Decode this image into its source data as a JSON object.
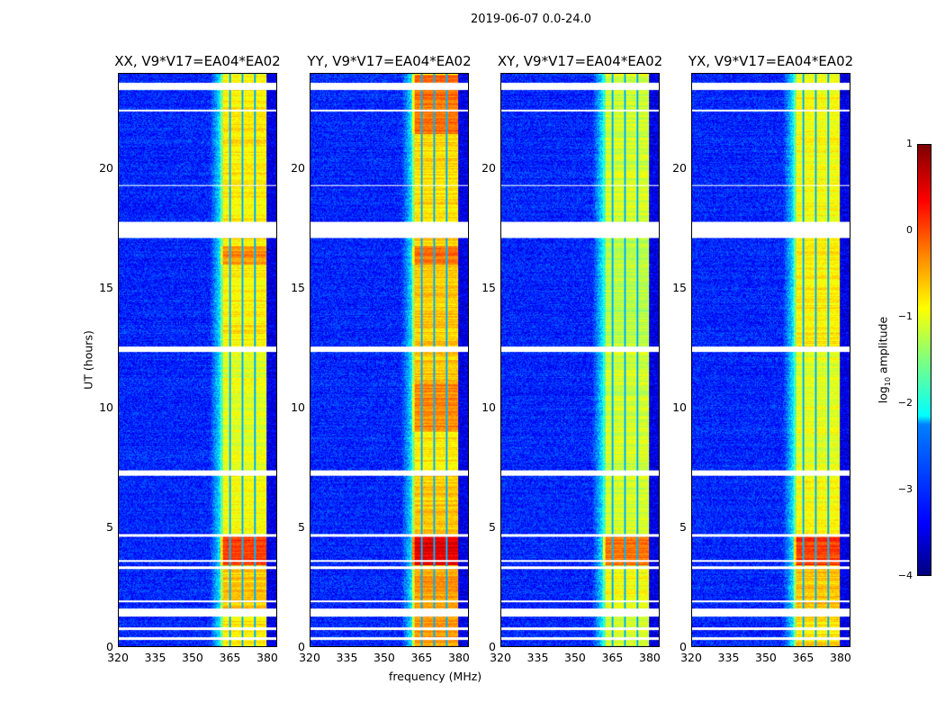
{
  "chart_data": {
    "type": "heatmap",
    "title": "2019-06-07 0.0-24.0",
    "xlabel": "frequency (MHz)",
    "ylabel": "UT (hours)",
    "xlim": [
      320,
      384
    ],
    "ylim": [
      0,
      24
    ],
    "xticks": [
      "320",
      "335",
      "350",
      "365",
      "380"
    ],
    "xtick_values": [
      320,
      335,
      350,
      365,
      380
    ],
    "yticks": [
      "0",
      "5",
      "10",
      "15",
      "20"
    ],
    "ytick_values": [
      0,
      5,
      10,
      15,
      20
    ],
    "colorbar": {
      "label_prefix": "log",
      "label_sub": "10",
      "label_suffix": " amplitude",
      "range": [
        -4,
        1
      ],
      "ticks": [
        "1",
        "0",
        "−1",
        "−2",
        "−3",
        "−4"
      ],
      "tick_values": [
        1,
        0,
        -1,
        -2,
        -3,
        -4
      ],
      "colormap": "jet"
    },
    "band": {
      "freq_range": [
        361,
        380
      ],
      "channel_edges": [
        365,
        370,
        375
      ]
    },
    "background_log_amplitude": -3.2,
    "flagged_hours": [
      [
        0.3,
        0.4
      ],
      [
        0.7,
        0.8
      ],
      [
        1.25,
        1.6
      ],
      [
        1.85,
        1.95
      ],
      [
        3.25,
        3.35
      ],
      [
        3.55,
        3.62
      ],
      [
        4.62,
        4.72
      ],
      [
        7.15,
        7.4
      ],
      [
        12.35,
        12.6
      ],
      [
        17.15,
        17.8
      ],
      [
        19.3,
        19.35
      ],
      [
        22.45,
        22.5
      ],
      [
        23.35,
        23.65
      ]
    ],
    "panels": [
      {
        "title": "XX, V9*V17=EA04*EA02",
        "segments": [
          [
            0,
            1.5,
            -0.8
          ],
          [
            1.6,
            3.3,
            -0.6
          ],
          [
            3.4,
            4.6,
            0.05
          ],
          [
            4.7,
            7.2,
            -0.9
          ],
          [
            7.4,
            12.4,
            -1.0
          ],
          [
            12.6,
            16.0,
            -0.8
          ],
          [
            16.0,
            16.8,
            -0.3
          ],
          [
            16.8,
            17.2,
            -0.8
          ],
          [
            17.8,
            24,
            -0.8
          ]
        ]
      },
      {
        "title": "YY, V9*V17=EA04*EA02",
        "segments": [
          [
            0,
            1.5,
            -0.4
          ],
          [
            1.6,
            3.3,
            -0.4
          ],
          [
            3.4,
            4.6,
            0.5
          ],
          [
            4.7,
            7.2,
            -0.6
          ],
          [
            7.4,
            9,
            -0.8
          ],
          [
            9,
            11,
            -0.3
          ],
          [
            11,
            12.4,
            -0.6
          ],
          [
            12.6,
            16.0,
            -0.6
          ],
          [
            16.0,
            16.8,
            -0.2
          ],
          [
            16.8,
            17.2,
            -0.6
          ],
          [
            17.8,
            21.5,
            -0.7
          ],
          [
            21.5,
            24,
            -0.2
          ]
        ]
      },
      {
        "title": "XY, V9*V17=EA04*EA02",
        "segments": [
          [
            0,
            1.5,
            -1.1
          ],
          [
            1.6,
            3.3,
            -0.9
          ],
          [
            3.4,
            4.6,
            -0.2
          ],
          [
            4.7,
            7.2,
            -1.1
          ],
          [
            7.4,
            12.4,
            -1.1
          ],
          [
            12.6,
            17.2,
            -1.2
          ],
          [
            17.8,
            24,
            -1.1
          ]
        ]
      },
      {
        "title": "YX, V9*V17=EA04*EA02",
        "segments": [
          [
            0,
            1.5,
            -0.7
          ],
          [
            1.6,
            3.3,
            -0.6
          ],
          [
            3.4,
            4.6,
            0.1
          ],
          [
            4.7,
            7.2,
            -0.9
          ],
          [
            7.4,
            12.4,
            -1.0
          ],
          [
            12.6,
            17.2,
            -0.8
          ],
          [
            17.8,
            24,
            -0.9
          ]
        ]
      }
    ]
  }
}
